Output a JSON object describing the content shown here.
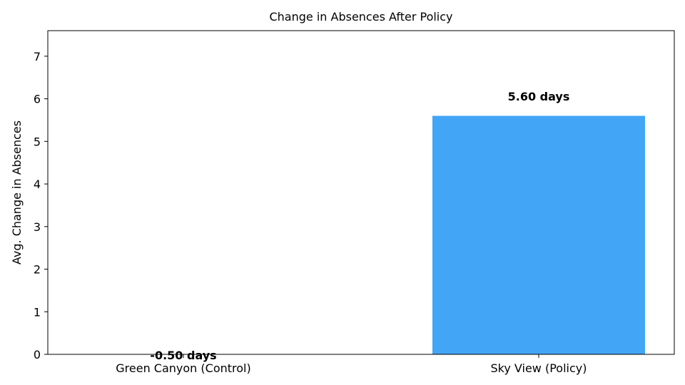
{
  "chart_data": {
    "type": "bar",
    "title": "Change in Absences After Policy",
    "xlabel": "",
    "ylabel": "Avg. Change in Absences",
    "categories": [
      "Green Canyon (Control)",
      "Sky View (Policy)"
    ],
    "values": [
      -0.5,
      5.6
    ],
    "data_labels": [
      "-0.50 days",
      "5.60 days"
    ],
    "ylim": [
      0,
      7.6
    ],
    "yticks": [
      0,
      1,
      2,
      3,
      4,
      5,
      6,
      7
    ],
    "ytick_labels": [
      "0",
      "1",
      "2",
      "3",
      "4",
      "5",
      "6",
      "7"
    ],
    "bar_color": "#42a5f5",
    "grid": false,
    "legend": "none"
  }
}
